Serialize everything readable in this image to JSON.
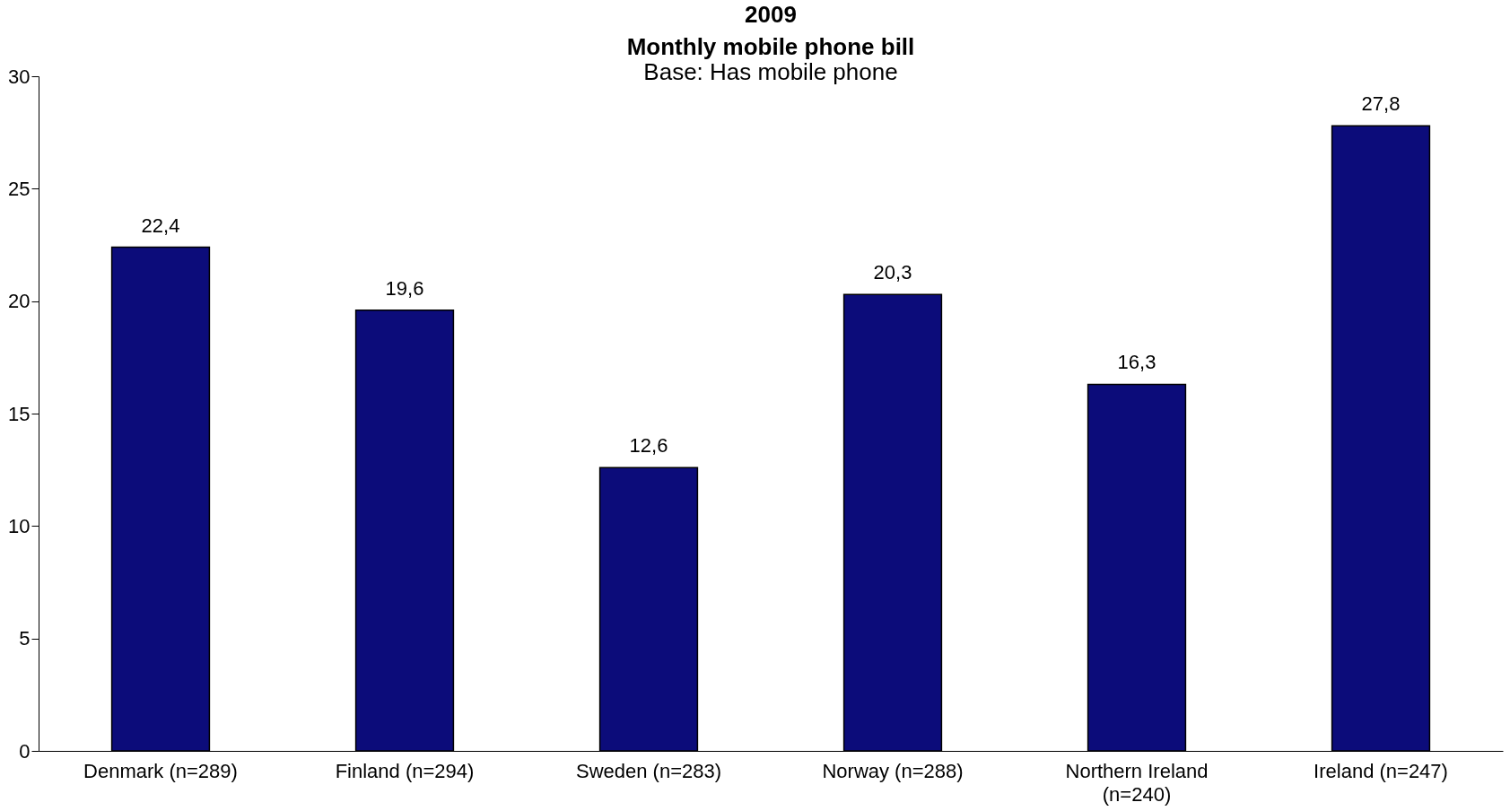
{
  "chart_data": {
    "type": "bar",
    "title": "2009\nMonthly mobile phone bill",
    "subtitle": "Base: Has mobile phone",
    "categories": [
      "Denmark (n=289)",
      "Finland (n=294)",
      "Sweden (n=283)",
      "Norway (n=288)",
      "Northern Ireland (n=240)",
      "Ireland (n=247)"
    ],
    "values": [
      22.4,
      19.6,
      12.6,
      20.3,
      16.3,
      27.8
    ],
    "value_labels": [
      "22,4",
      "19,6",
      "12,6",
      "20,3",
      "16,3",
      "27,8"
    ],
    "color": "#0c0c7a",
    "ylim": [
      0,
      30
    ],
    "yticks": [
      0,
      5,
      10,
      15,
      20,
      25,
      30
    ],
    "grid": false
  }
}
